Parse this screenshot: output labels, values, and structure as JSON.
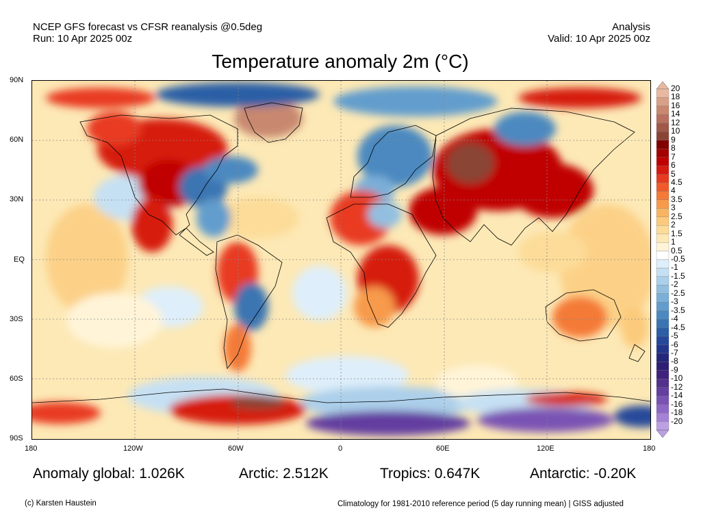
{
  "header": {
    "left_line1": "NCEP GFS forecast vs CFSR reanalysis @0.5deg",
    "left_line2": "Run: 10 Apr 2025 00z",
    "right_line1": "Analysis",
    "right_line2": "Valid: 10 Apr 2025 00z"
  },
  "title": "Temperature anomaly 2m (°C)",
  "map": {
    "lat_labels": [
      "90N",
      "60N",
      "30N",
      "EQ",
      "30S",
      "60S",
      "90S"
    ],
    "lon_labels": [
      "180",
      "120W",
      "60W",
      "0",
      "60E",
      "120E",
      "180"
    ]
  },
  "colorbar": {
    "labels": [
      "20",
      "18",
      "16",
      "14",
      "12",
      "10",
      "9",
      "8",
      "7",
      "6",
      "5",
      "4.5",
      "4",
      "3.5",
      "3",
      "2.5",
      "2",
      "1.5",
      "1",
      "0.5",
      "-0.5",
      "-1",
      "-1.5",
      "-2",
      "-2.5",
      "-3",
      "-3.5",
      "-4",
      "-4.5",
      "-5",
      "-6",
      "-7",
      "-8",
      "-9",
      "-10",
      "-12",
      "-14",
      "-16",
      "-18",
      "-20"
    ],
    "colors": [
      "#e8b8a0",
      "#d9a088",
      "#c8886f",
      "#b87060",
      "#a05848",
      "#8a4436",
      "#800000",
      "#a30000",
      "#c00000",
      "#d61a10",
      "#e83a20",
      "#f05a2a",
      "#f47a38",
      "#f79a4c",
      "#f9b462",
      "#fbca7c",
      "#fcdc98",
      "#fde9b6",
      "#fff4d8",
      "#ffffff",
      "#deeefa",
      "#c6e0f3",
      "#accfea",
      "#92bfe0",
      "#7aafd8",
      "#629dcd",
      "#4c89c0",
      "#3a74b2",
      "#2c5ea6",
      "#26489a",
      "#23368c",
      "#24267c",
      "#2e1e74",
      "#40227c",
      "#52308c",
      "#643ea0",
      "#7a52b4",
      "#8e68c6",
      "#a482d6",
      "#bca0e4"
    ]
  },
  "stats": {
    "global": "Anomaly global: 1.026K",
    "arctic": "Arctic: 2.512K",
    "tropics": "Tropics: 0.647K",
    "antarctic": "Antarctic: -0.20K"
  },
  "footer": {
    "credit": "(c) Karsten Haustein",
    "climatology": "Climatology for 1981-2010 reference period (5 day running mean) | GISS adjusted"
  }
}
